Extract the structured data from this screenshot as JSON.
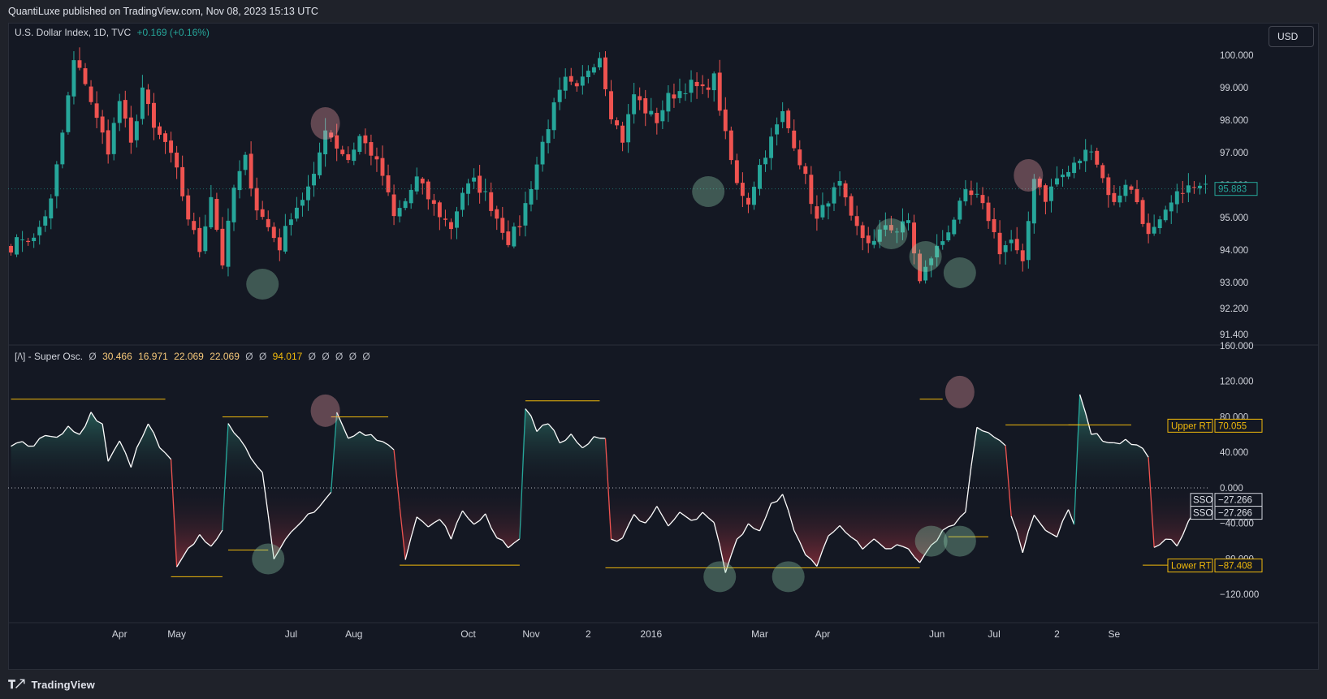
{
  "publisher_bar": "QuantiLuxe published on TradingView.com, Nov 08, 2023 15:13 UTC",
  "main_legend": {
    "symbol": "U.S. Dollar Index, 1D, TVC",
    "change": "+0.169 (+0.16%)"
  },
  "osc_legend": {
    "name": "[/\\] - Super Osc.",
    "values": [
      "Ø",
      "30.466",
      "16.971",
      "22.069",
      "22.069",
      "Ø",
      "Ø",
      "94.017",
      "Ø",
      "Ø",
      "Ø",
      "Ø",
      "Ø"
    ]
  },
  "currency_button": "USD",
  "footer_brand": "TradingView",
  "colors": {
    "up": "#26a69a",
    "down": "#ef5350",
    "line": "#ffffff",
    "threshold": "#f0b90b",
    "axis_text": "#d1d4dc",
    "bg": "#141823"
  },
  "chart_data": [
    {
      "type": "candlestick",
      "title": "U.S. Dollar Index, 1D, TVC",
      "y_ticks": [
        "100.000",
        "99.000",
        "98.000",
        "97.000",
        "96.000",
        "95.000",
        "94.000",
        "93.000",
        "92.200",
        "91.400"
      ],
      "y_tick_values": [
        100.0,
        99.0,
        98.0,
        97.0,
        96.0,
        95.0,
        94.0,
        93.0,
        92.2,
        91.4
      ],
      "ylim": [
        91.1,
        101.0
      ],
      "last_price_label": "95.883",
      "close_anchors": [
        [
          0,
          94.1
        ],
        [
          2,
          94.4
        ],
        [
          4,
          94.3
        ],
        [
          7,
          95.5
        ],
        [
          9,
          97.6
        ],
        [
          11,
          99.8
        ],
        [
          13,
          99.2
        ],
        [
          15,
          98.0
        ],
        [
          17,
          97.1
        ],
        [
          19,
          98.6
        ],
        [
          21,
          97.2
        ],
        [
          23,
          99.0
        ],
        [
          25,
          97.7
        ],
        [
          27,
          97.3
        ],
        [
          29,
          96.4
        ],
        [
          31,
          95.0
        ],
        [
          33,
          94.0
        ],
        [
          35,
          95.7
        ],
        [
          37,
          93.6
        ],
        [
          39,
          95.9
        ],
        [
          41,
          96.8
        ],
        [
          43,
          95.3
        ],
        [
          45,
          94.7
        ],
        [
          47,
          94.1
        ],
        [
          49,
          95.1
        ],
        [
          51,
          95.6
        ],
        [
          53,
          96.2
        ],
        [
          55,
          97.8
        ],
        [
          57,
          97.2
        ],
        [
          59,
          96.8
        ],
        [
          61,
          97.5
        ],
        [
          63,
          97.0
        ],
        [
          65,
          96.3
        ],
        [
          67,
          95.0
        ],
        [
          69,
          95.5
        ],
        [
          71,
          96.2
        ],
        [
          73,
          95.6
        ],
        [
          75,
          95.1
        ],
        [
          77,
          94.7
        ],
        [
          79,
          95.8
        ],
        [
          81,
          96.1
        ],
        [
          83,
          95.7
        ],
        [
          85,
          95.0
        ],
        [
          87,
          94.3
        ],
        [
          89,
          94.8
        ],
        [
          91,
          96.0
        ],
        [
          93,
          97.3
        ],
        [
          95,
          98.4
        ],
        [
          97,
          99.2
        ],
        [
          99,
          98.9
        ],
        [
          101,
          99.6
        ],
        [
          103,
          100.0
        ],
        [
          105,
          98.2
        ],
        [
          107,
          97.4
        ],
        [
          109,
          98.8
        ],
        [
          111,
          98.3
        ],
        [
          113,
          98.0
        ],
        [
          115,
          98.7
        ],
        [
          117,
          98.9
        ],
        [
          119,
          99.1
        ],
        [
          121,
          98.9
        ],
        [
          123,
          99.3
        ],
        [
          125,
          97.5
        ],
        [
          127,
          96.0
        ],
        [
          129,
          95.5
        ],
        [
          131,
          96.6
        ],
        [
          133,
          97.4
        ],
        [
          135,
          98.2
        ],
        [
          137,
          97.3
        ],
        [
          139,
          96.2
        ],
        [
          141,
          94.9
        ],
        [
          143,
          95.6
        ],
        [
          145,
          96.0
        ],
        [
          147,
          94.9
        ],
        [
          149,
          94.4
        ],
        [
          151,
          94.2
        ],
        [
          153,
          94.8
        ],
        [
          155,
          94.6
        ],
        [
          157,
          94.9
        ],
        [
          159,
          93.0
        ],
        [
          161,
          93.8
        ],
        [
          163,
          94.3
        ],
        [
          165,
          95.0
        ],
        [
          167,
          95.7
        ],
        [
          169,
          95.6
        ],
        [
          171,
          95.0
        ],
        [
          173,
          94.0
        ],
        [
          175,
          94.3
        ],
        [
          177,
          93.5
        ],
        [
          179,
          96.3
        ],
        [
          181,
          95.6
        ],
        [
          183,
          96.2
        ],
        [
          185,
          96.4
        ],
        [
          187,
          96.8
        ],
        [
          189,
          97.2
        ],
        [
          191,
          96.2
        ],
        [
          193,
          95.4
        ],
        [
          195,
          96.1
        ],
        [
          197,
          95.5
        ],
        [
          199,
          94.4
        ],
        [
          201,
          94.8
        ],
        [
          203,
          95.4
        ],
        [
          205,
          95.9
        ]
      ]
    },
    {
      "type": "area",
      "title": "[/\\] - Super Osc.",
      "y_ticks": [
        "160.000",
        "120.000",
        "80.000",
        "40.000",
        "0.000",
        "−40.000",
        "−80.000",
        "−120.000"
      ],
      "y_tick_values": [
        160,
        120,
        80,
        40,
        0,
        -40,
        -80,
        -120
      ],
      "ylim": [
        -150,
        160
      ],
      "zero_line": 0.0,
      "labels": [
        {
          "name": "Upper RT",
          "value": "70.055",
          "y": 70.055
        },
        {
          "name": "SSO",
          "value": "−27.266",
          "y": -13.5
        },
        {
          "name": "SSO",
          "value": "−27.266",
          "y": -28.0
        },
        {
          "name": "Lower RT",
          "value": "−87.408",
          "y": -87.408
        }
      ],
      "osc_anchors": [
        [
          0,
          45
        ],
        [
          2,
          52
        ],
        [
          4,
          48
        ],
        [
          6,
          58
        ],
        [
          8,
          55
        ],
        [
          10,
          68
        ],
        [
          12,
          60
        ],
        [
          14,
          85
        ],
        [
          16,
          72
        ],
        [
          17,
          30
        ],
        [
          19,
          55
        ],
        [
          21,
          25
        ],
        [
          22,
          45
        ],
        [
          24,
          75
        ],
        [
          26,
          45
        ],
        [
          28,
          30
        ],
        [
          29,
          -90
        ],
        [
          31,
          -70
        ],
        [
          33,
          -55
        ],
        [
          35,
          -65
        ],
        [
          37,
          -45
        ],
        [
          38,
          75
        ],
        [
          40,
          55
        ],
        [
          42,
          35
        ],
        [
          44,
          20
        ],
        [
          46,
          -83
        ],
        [
          48,
          -60
        ],
        [
          50,
          -45
        ],
        [
          52,
          -30
        ],
        [
          54,
          -20
        ],
        [
          56,
          -5
        ],
        [
          57,
          85
        ],
        [
          59,
          55
        ],
        [
          61,
          62
        ],
        [
          63,
          58
        ],
        [
          65,
          55
        ],
        [
          67,
          40
        ],
        [
          69,
          -78
        ],
        [
          71,
          -30
        ],
        [
          73,
          -45
        ],
        [
          75,
          -35
        ],
        [
          77,
          -55
        ],
        [
          79,
          -28
        ],
        [
          81,
          -40
        ],
        [
          83,
          -30
        ],
        [
          85,
          -55
        ],
        [
          87,
          -65
        ],
        [
          89,
          -60
        ],
        [
          90,
          92
        ],
        [
          92,
          65
        ],
        [
          94,
          75
        ],
        [
          96,
          50
        ],
        [
          98,
          60
        ],
        [
          100,
          45
        ],
        [
          102,
          55
        ],
        [
          104,
          53
        ],
        [
          105,
          -60
        ],
        [
          107,
          -55
        ],
        [
          109,
          -30
        ],
        [
          111,
          -40
        ],
        [
          113,
          -20
        ],
        [
          115,
          -45
        ],
        [
          117,
          -25
        ],
        [
          119,
          -35
        ],
        [
          121,
          -30
        ],
        [
          123,
          -40
        ],
        [
          125,
          -93
        ],
        [
          127,
          -60
        ],
        [
          129,
          -40
        ],
        [
          131,
          -50
        ],
        [
          133,
          -20
        ],
        [
          135,
          -5
        ],
        [
          137,
          -50
        ],
        [
          139,
          -73
        ],
        [
          141,
          -88
        ],
        [
          143,
          -55
        ],
        [
          145,
          -40
        ],
        [
          147,
          -55
        ],
        [
          149,
          -70
        ],
        [
          151,
          -60
        ],
        [
          153,
          -70
        ],
        [
          155,
          -65
        ],
        [
          157,
          -70
        ],
        [
          159,
          -85
        ],
        [
          161,
          -65
        ],
        [
          163,
          -50
        ],
        [
          165,
          -40
        ],
        [
          167,
          -25
        ],
        [
          169,
          70
        ],
        [
          171,
          60
        ],
        [
          173,
          52
        ],
        [
          174,
          50
        ],
        [
          175,
          -33
        ],
        [
          177,
          -70
        ],
        [
          179,
          -30
        ],
        [
          181,
          -45
        ],
        [
          183,
          -55
        ],
        [
          185,
          -25
        ],
        [
          186,
          -42
        ],
        [
          187,
          108
        ],
        [
          189,
          62
        ],
        [
          191,
          55
        ],
        [
          193,
          50
        ],
        [
          195,
          52
        ],
        [
          197,
          50
        ],
        [
          199,
          35
        ],
        [
          200,
          -70
        ],
        [
          202,
          -55
        ],
        [
          204,
          -65
        ],
        [
          206,
          -40
        ],
        [
          208,
          -15
        ]
      ],
      "threshold_segments": [
        [
          0,
          27,
          100
        ],
        [
          37,
          45,
          80
        ],
        [
          38,
          45,
          -70
        ],
        [
          56,
          66,
          80
        ],
        [
          28,
          37,
          -100
        ],
        [
          68,
          89,
          -87
        ],
        [
          90,
          103,
          98
        ],
        [
          104,
          159,
          -90
        ],
        [
          159,
          163,
          100
        ],
        [
          164,
          171,
          -55
        ],
        [
          174,
          187,
          71
        ],
        [
          185,
          196,
          71
        ],
        [
          198,
          206,
          -87
        ]
      ]
    }
  ],
  "x_axis_labels": [
    {
      "label": "Apr",
      "i": 19
    },
    {
      "label": "May",
      "i": 29
    },
    {
      "label": "Jul",
      "i": 49
    },
    {
      "label": "Aug",
      "i": 60
    },
    {
      "label": "Oct",
      "i": 80
    },
    {
      "label": "Nov",
      "i": 91
    },
    {
      "label": "2",
      "i": 101
    },
    {
      "label": "2016",
      "i": 112
    },
    {
      "label": "Mar",
      "i": 131
    },
    {
      "label": "Apr",
      "i": 142
    },
    {
      "label": "Jun",
      "i": 162
    },
    {
      "label": "Jul",
      "i": 172
    },
    {
      "label": "2",
      "i": 183
    },
    {
      "label": "Se",
      "i": 193
    }
  ]
}
